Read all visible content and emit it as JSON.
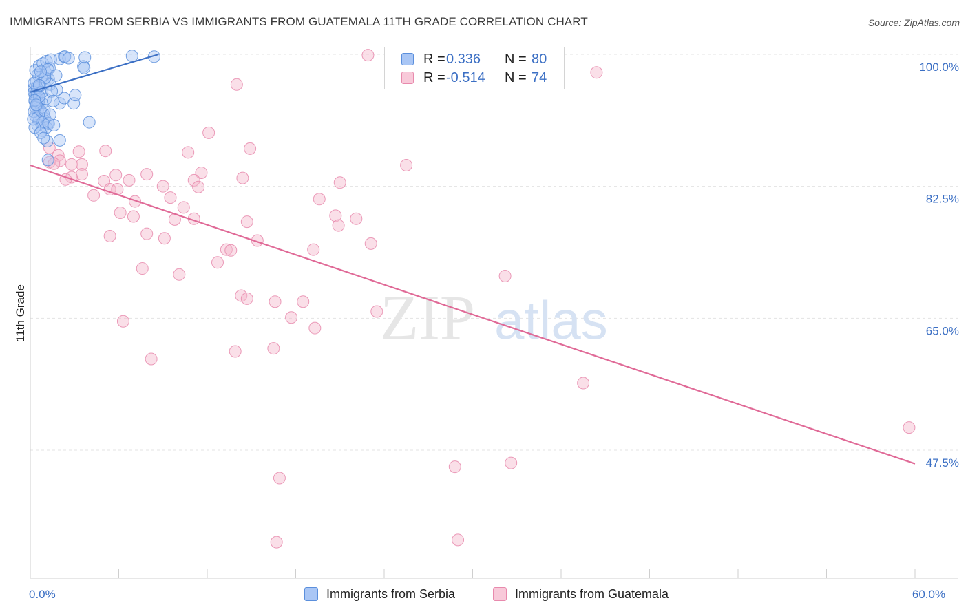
{
  "header": {
    "title": "IMMIGRANTS FROM SERBIA VS IMMIGRANTS FROM GUATEMALA 11TH GRADE CORRELATION CHART",
    "source": "Source: ZipAtlas.com"
  },
  "watermark": {
    "part1": "ZIP",
    "part2": "atlas"
  },
  "colors": {
    "serbia": "#3b6fc4",
    "serbia_fill": "#a9c6f5",
    "guatemala": "#e06a97",
    "guatemala_fill": "#f5b8cd",
    "grid": "#e3e3e3",
    "tick_text": "#3b6fc4"
  },
  "legend": {
    "serbia": {
      "r_label": "R =",
      "r_value": "0.336",
      "n_label": "N =",
      "n_value": "80"
    },
    "guatemala": {
      "r_label": "R =",
      "r_value": "-0.514",
      "n_label": "N =",
      "n_value": "74"
    }
  },
  "bottom_legend": {
    "serbia": "Immigrants from Serbia",
    "guatemala": "Immigrants from Guatemala"
  },
  "chart_data": {
    "type": "scatter",
    "title": "IMMIGRANTS FROM SERBIA VS IMMIGRANTS FROM GUATEMALA 11TH GRADE CORRELATION CHART",
    "xlabel": "",
    "ylabel": "11th Grade",
    "xlim": [
      0,
      60
    ],
    "ylim": [
      33,
      101.5
    ],
    "x_ticks": [
      0,
      6,
      12,
      18,
      24,
      30,
      36,
      42,
      48,
      54,
      60
    ],
    "x_tick_labels": [
      {
        "value": 0,
        "label": "0.0%"
      },
      {
        "value": 60,
        "label": "60.0%"
      }
    ],
    "y_tick_labels": [
      {
        "value": 100,
        "label": "100.0%"
      },
      {
        "value": 82.5,
        "label": "82.5%"
      },
      {
        "value": 65,
        "label": "65.0%"
      },
      {
        "value": 47.5,
        "label": "47.5%"
      }
    ],
    "grid": true,
    "series": [
      {
        "name": "Immigrants from Serbia",
        "color": "#3b6fc4",
        "trend": {
          "x0": 0,
          "y0": 95.0,
          "x1": 8.7,
          "y1": 100.0
        },
        "points": [
          [
            0.25,
            95.5
          ],
          [
            0.35,
            95.2
          ],
          [
            0.5,
            94.8
          ],
          [
            0.4,
            94.3
          ],
          [
            0.6,
            94.0
          ],
          [
            0.3,
            93.8
          ],
          [
            0.8,
            93.5
          ],
          [
            0.45,
            93.2
          ],
          [
            0.55,
            92.9
          ],
          [
            0.7,
            92.5
          ],
          [
            0.9,
            92.1
          ],
          [
            0.35,
            91.8
          ],
          [
            1.0,
            91.5
          ],
          [
            0.6,
            91.2
          ],
          [
            1.2,
            90.9
          ],
          [
            0.5,
            90.6
          ],
          [
            1.1,
            90.3
          ],
          [
            0.8,
            89.9
          ],
          [
            0.3,
            94.6
          ],
          [
            0.65,
            95.8
          ],
          [
            0.95,
            96.1
          ],
          [
            0.4,
            96.4
          ],
          [
            1.25,
            96.7
          ],
          [
            0.75,
            97.0
          ],
          [
            0.5,
            97.3
          ],
          [
            1.05,
            97.6
          ],
          [
            0.35,
            97.9
          ],
          [
            1.3,
            98.2
          ],
          [
            0.6,
            98.5
          ],
          [
            0.85,
            98.8
          ],
          [
            1.1,
            99.1
          ],
          [
            1.4,
            99.3
          ],
          [
            2.0,
            99.4
          ],
          [
            2.3,
            99.7
          ],
          [
            2.35,
            99.7
          ],
          [
            2.6,
            99.5
          ],
          [
            3.7,
            99.6
          ],
          [
            6.9,
            99.8
          ],
          [
            8.4,
            99.7
          ],
          [
            3.6,
            98.4
          ],
          [
            3.65,
            98.2
          ],
          [
            1.35,
            96.0
          ],
          [
            0.25,
            95.0
          ],
          [
            0.45,
            94.5
          ],
          [
            0.55,
            93.6
          ],
          [
            0.35,
            93.0
          ],
          [
            0.25,
            92.4
          ],
          [
            0.5,
            91.6
          ],
          [
            0.85,
            91.0
          ],
          [
            1.25,
            90.8
          ],
          [
            1.6,
            90.6
          ],
          [
            2.0,
            93.5
          ],
          [
            2.3,
            94.2
          ],
          [
            2.95,
            93.5
          ],
          [
            3.05,
            94.6
          ],
          [
            4.0,
            91.0
          ],
          [
            2.0,
            88.6
          ],
          [
            1.15,
            88.5
          ],
          [
            1.2,
            86.0
          ],
          [
            0.3,
            90.3
          ],
          [
            0.7,
            89.6
          ],
          [
            0.9,
            88.9
          ],
          [
            1.8,
            95.3
          ],
          [
            1.05,
            94.1
          ],
          [
            0.45,
            95.6
          ],
          [
            0.8,
            95.0
          ],
          [
            0.6,
            94.4
          ],
          [
            0.3,
            93.9
          ],
          [
            1.45,
            95.1
          ],
          [
            1.55,
            93.8
          ],
          [
            0.95,
            92.6
          ],
          [
            1.35,
            92.0
          ],
          [
            0.25,
            96.2
          ],
          [
            1.0,
            96.9
          ],
          [
            1.2,
            98.0
          ],
          [
            0.7,
            97.7
          ],
          [
            1.75,
            97.2
          ],
          [
            0.4,
            93.3
          ],
          [
            0.2,
            91.4
          ],
          [
            0.6,
            95.9
          ]
        ]
      },
      {
        "name": "Immigrants from Guatemala",
        "color": "#e06a97",
        "trend": {
          "x0": 0,
          "y0": 85.3,
          "x1": 60,
          "y1": 45.7
        },
        "points": [
          [
            22.9,
            99.9
          ],
          [
            38.4,
            97.6
          ],
          [
            14.0,
            96.0
          ],
          [
            12.1,
            89.6
          ],
          [
            14.9,
            87.5
          ],
          [
            10.7,
            87.0
          ],
          [
            5.1,
            87.2
          ],
          [
            3.3,
            87.1
          ],
          [
            1.9,
            86.6
          ],
          [
            2.0,
            85.9
          ],
          [
            2.8,
            85.4
          ],
          [
            3.5,
            85.4
          ],
          [
            1.3,
            85.7
          ],
          [
            1.6,
            85.5
          ],
          [
            25.5,
            85.3
          ],
          [
            7.9,
            84.1
          ],
          [
            5.8,
            84.0
          ],
          [
            3.5,
            84.1
          ],
          [
            2.8,
            83.7
          ],
          [
            2.4,
            83.4
          ],
          [
            5.0,
            83.2
          ],
          [
            6.7,
            83.3
          ],
          [
            11.6,
            84.3
          ],
          [
            11.1,
            83.3
          ],
          [
            14.4,
            83.6
          ],
          [
            21.0,
            83.0
          ],
          [
            9.0,
            82.5
          ],
          [
            11.4,
            82.4
          ],
          [
            5.4,
            82.1
          ],
          [
            5.9,
            82.1
          ],
          [
            4.3,
            81.3
          ],
          [
            9.5,
            81.0
          ],
          [
            19.6,
            80.8
          ],
          [
            7.1,
            80.5
          ],
          [
            10.4,
            79.7
          ],
          [
            6.1,
            79.0
          ],
          [
            7.0,
            78.5
          ],
          [
            9.8,
            78.1
          ],
          [
            11.1,
            78.2
          ],
          [
            14.7,
            77.8
          ],
          [
            20.7,
            78.6
          ],
          [
            22.1,
            78.2
          ],
          [
            20.9,
            77.3
          ],
          [
            7.9,
            76.2
          ],
          [
            5.4,
            75.9
          ],
          [
            9.1,
            75.6
          ],
          [
            15.4,
            75.3
          ],
          [
            23.1,
            74.9
          ],
          [
            13.3,
            74.1
          ],
          [
            13.6,
            74.0
          ],
          [
            19.2,
            74.1
          ],
          [
            12.7,
            72.4
          ],
          [
            7.6,
            71.6
          ],
          [
            10.1,
            70.8
          ],
          [
            32.2,
            70.6
          ],
          [
            14.3,
            68.0
          ],
          [
            14.7,
            67.6
          ],
          [
            16.6,
            67.2
          ],
          [
            18.5,
            67.2
          ],
          [
            23.5,
            65.9
          ],
          [
            17.7,
            65.1
          ],
          [
            6.3,
            64.6
          ],
          [
            19.3,
            63.7
          ],
          [
            13.9,
            60.6
          ],
          [
            16.5,
            61.0
          ],
          [
            8.2,
            59.6
          ],
          [
            37.5,
            56.4
          ],
          [
            59.6,
            50.5
          ],
          [
            28.8,
            45.3
          ],
          [
            32.6,
            45.8
          ],
          [
            16.9,
            43.8
          ],
          [
            16.7,
            35.3
          ],
          [
            29.0,
            35.6
          ],
          [
            1.3,
            87.6
          ]
        ]
      }
    ]
  }
}
